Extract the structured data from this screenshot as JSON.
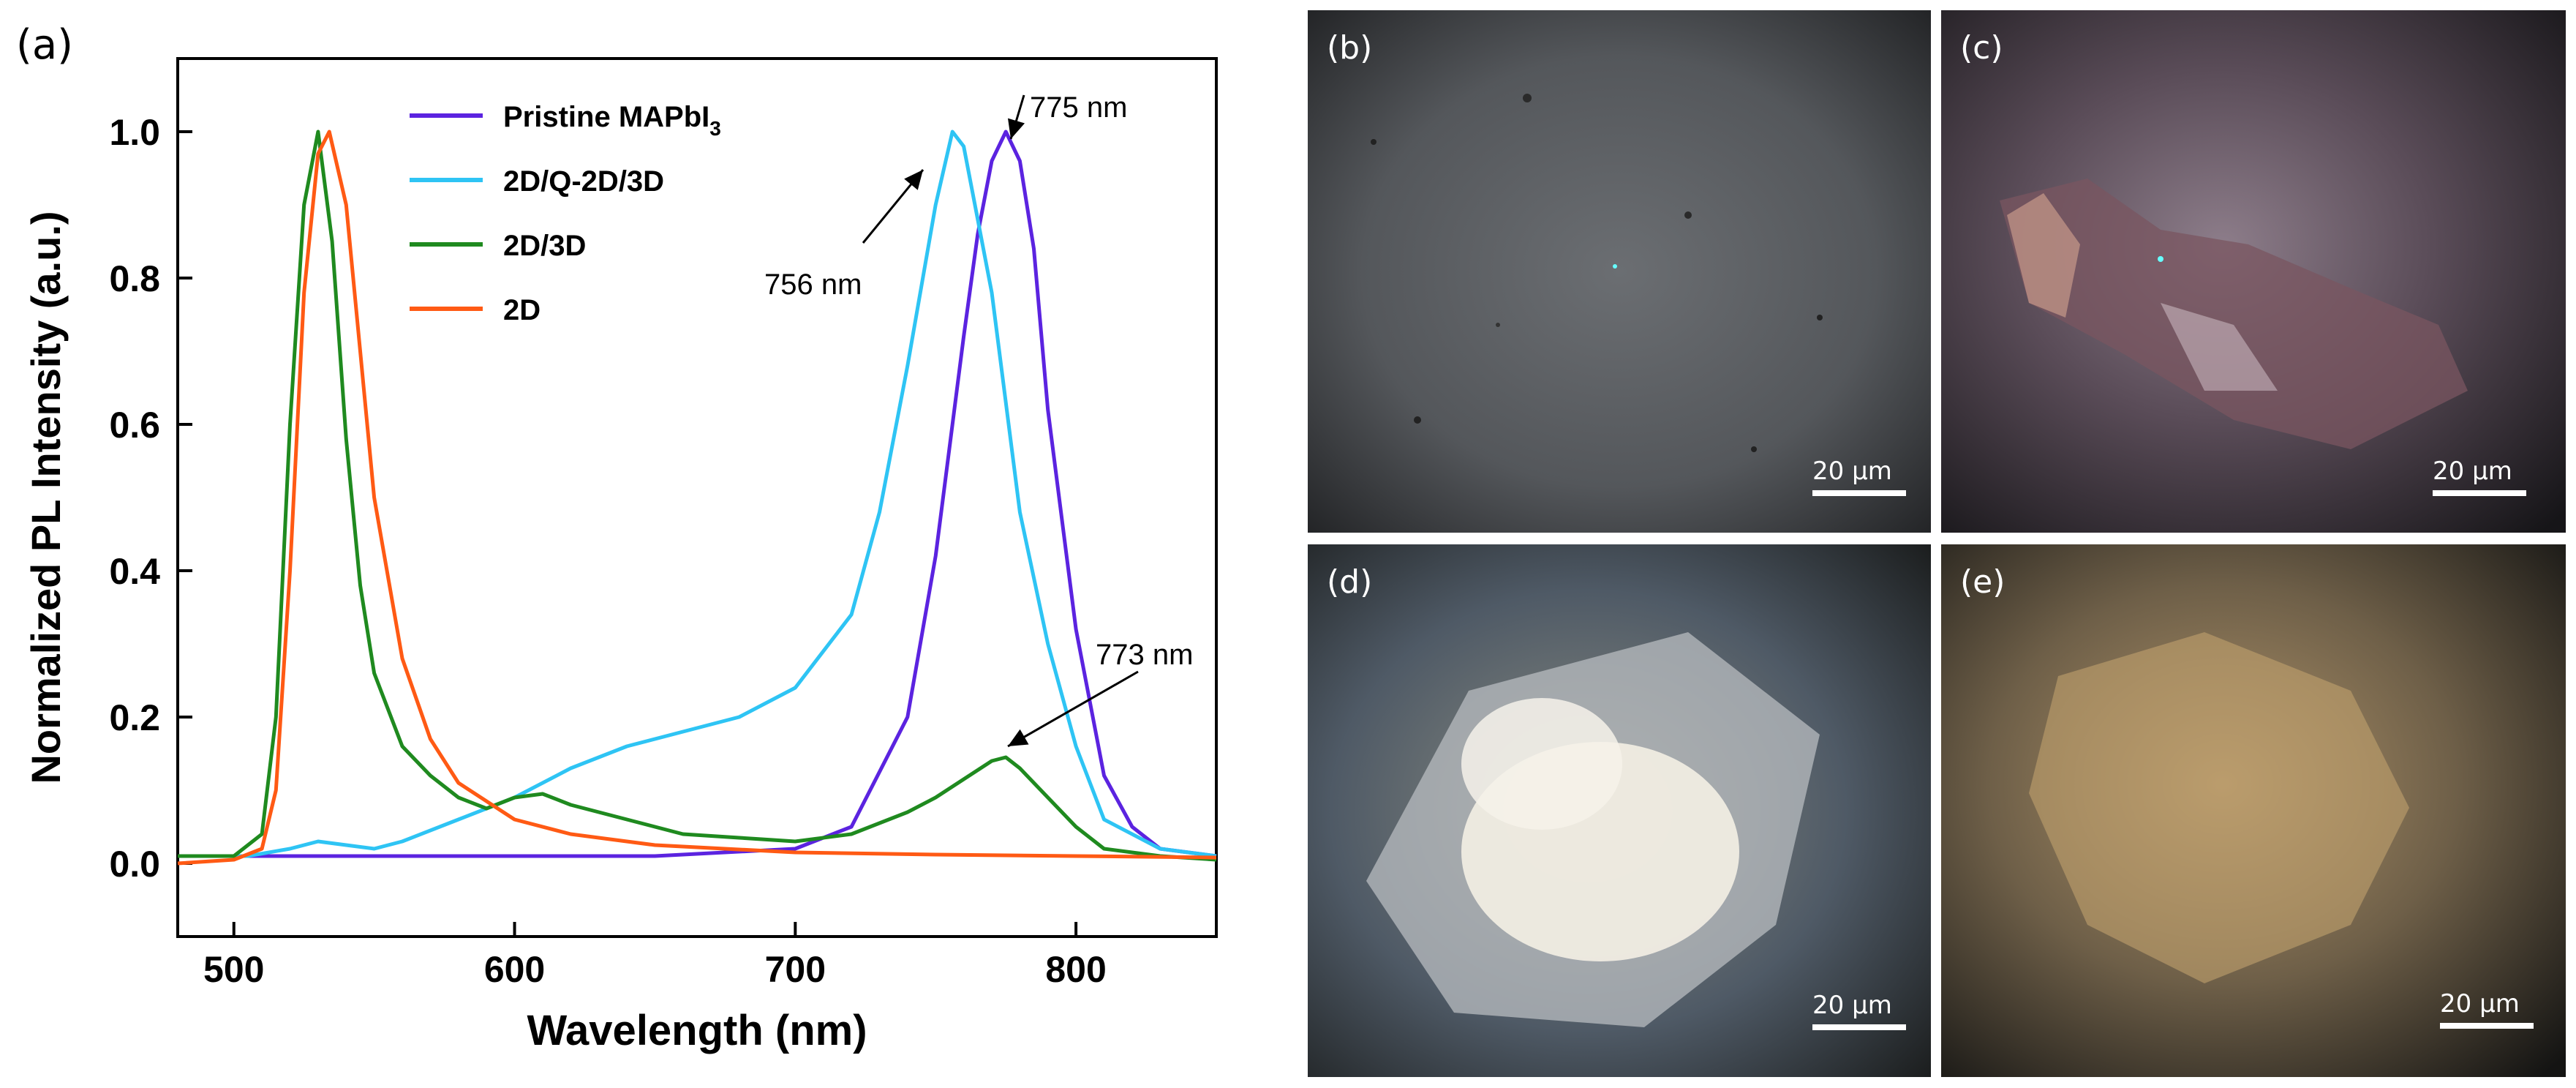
{
  "chart_data": {
    "type": "line",
    "panel_label": "(a)",
    "xlabel": "Wavelength (nm)",
    "ylabel": "Normalized PL Intensity (a.u.)",
    "xlim": [
      480,
      850
    ],
    "ylim": [
      -0.1,
      1.1
    ],
    "xticks": [
      "500",
      "600",
      "700",
      "800"
    ],
    "yticks": [
      "0.0",
      "0.2",
      "0.4",
      "0.6",
      "0.8",
      "1.0"
    ],
    "grid": false,
    "legend_position": "top-center",
    "series": [
      {
        "name": "Pristine MAPbI3",
        "name_main": "Pristine MAPbI",
        "name_sub": "3",
        "color": "#5b23e0",
        "x": [
          480,
          650,
          700,
          720,
          740,
          750,
          760,
          765,
          770,
          775,
          780,
          785,
          790,
          800,
          810,
          820,
          830,
          850
        ],
        "y": [
          0.01,
          0.01,
          0.02,
          0.05,
          0.2,
          0.42,
          0.72,
          0.86,
          0.96,
          1.0,
          0.96,
          0.84,
          0.62,
          0.32,
          0.12,
          0.05,
          0.02,
          0.01
        ]
      },
      {
        "name": "2D/Q-2D/3D",
        "color": "#2ec4f4",
        "x": [
          480,
          505,
          520,
          530,
          540,
          550,
          560,
          580,
          600,
          620,
          640,
          660,
          680,
          700,
          720,
          730,
          740,
          750,
          756,
          760,
          770,
          780,
          790,
          800,
          810,
          830,
          850
        ],
        "y": [
          0.01,
          0.01,
          0.02,
          0.03,
          0.025,
          0.02,
          0.03,
          0.06,
          0.09,
          0.13,
          0.16,
          0.18,
          0.2,
          0.24,
          0.34,
          0.48,
          0.68,
          0.9,
          1.0,
          0.98,
          0.78,
          0.48,
          0.3,
          0.16,
          0.06,
          0.02,
          0.01
        ]
      },
      {
        "name": "2D/3D",
        "color": "#1f8a1f",
        "x": [
          480,
          500,
          510,
          515,
          520,
          525,
          530,
          535,
          540,
          545,
          550,
          560,
          570,
          580,
          590,
          600,
          610,
          620,
          630,
          640,
          660,
          680,
          700,
          720,
          740,
          750,
          760,
          770,
          775,
          780,
          790,
          800,
          810,
          830,
          850
        ],
        "y": [
          0.01,
          0.01,
          0.04,
          0.2,
          0.6,
          0.9,
          1.0,
          0.85,
          0.58,
          0.38,
          0.26,
          0.16,
          0.12,
          0.09,
          0.075,
          0.09,
          0.095,
          0.08,
          0.07,
          0.06,
          0.04,
          0.035,
          0.03,
          0.04,
          0.07,
          0.09,
          0.115,
          0.14,
          0.145,
          0.13,
          0.09,
          0.05,
          0.02,
          0.01,
          0.005
        ]
      },
      {
        "name": "2D",
        "color": "#ff5a14",
        "x": [
          480,
          500,
          510,
          515,
          520,
          525,
          530,
          534,
          540,
          545,
          550,
          560,
          570,
          580,
          600,
          620,
          650,
          700,
          750,
          800,
          850
        ],
        "y": [
          0.0,
          0.005,
          0.02,
          0.1,
          0.4,
          0.78,
          0.97,
          1.0,
          0.9,
          0.7,
          0.5,
          0.28,
          0.17,
          0.11,
          0.06,
          0.04,
          0.025,
          0.015,
          0.012,
          0.01,
          0.008
        ]
      }
    ],
    "annotations": [
      {
        "text": "775 nm",
        "x": 775,
        "y": 1.0
      },
      {
        "text": "756 nm",
        "x": 756,
        "y": 0.95
      },
      {
        "text": "773 nm",
        "x": 773,
        "y": 0.14
      }
    ]
  },
  "images": [
    {
      "label": "(b)",
      "scale": "20 μm",
      "description": "dark gray optical micrograph",
      "bg": "#4a4d50"
    },
    {
      "label": "(c)",
      "scale": "20 μm",
      "description": "reddish-purple crystal cluster micrograph",
      "bg": "#3a3640"
    },
    {
      "label": "(d)",
      "scale": "20 μm",
      "description": "white crystalline flakes micrograph",
      "bg": "#3a3e36"
    },
    {
      "label": "(e)",
      "scale": "20 μm",
      "description": "yellow-brown crystal micrograph",
      "bg": "#2a2a26"
    }
  ]
}
